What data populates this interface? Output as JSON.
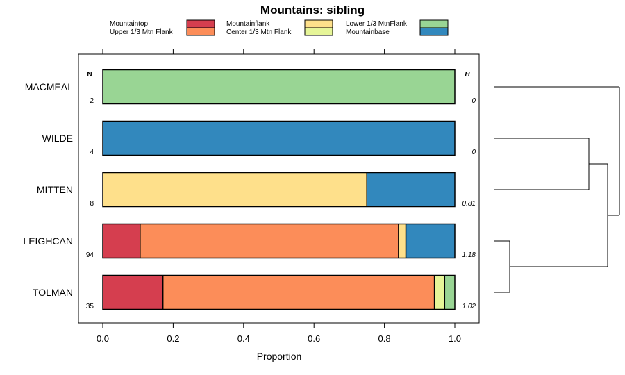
{
  "chart_data": {
    "type": "bar",
    "orientation": "horizontal",
    "stacked": true,
    "title": "Mountains: sibling",
    "xlabel": "Proportion",
    "ylabel": "",
    "xlim": [
      0,
      1
    ],
    "xticks": [
      "0.0",
      "0.2",
      "0.4",
      "0.6",
      "0.8",
      "1.0"
    ],
    "n_header": "N",
    "h_header": "H",
    "legend": [
      {
        "name": "Mountaintop",
        "color": "#d53e4f"
      },
      {
        "name": "Upper 1/3 Mtn Flank",
        "color": "#fc8d59"
      },
      {
        "name": "Mountainflank",
        "color": "#fee08b"
      },
      {
        "name": "Center 1/3 Mtn Flank",
        "color": "#e6f598"
      },
      {
        "name": "Lower 1/3 MtnFlank",
        "color": "#99d594"
      },
      {
        "name": "Mountainbase",
        "color": "#3288bd"
      }
    ],
    "categories": [
      "MACMEAL",
      "WILDE",
      "MITTEN",
      "LEIGHCAN",
      "TOLMAN"
    ],
    "n": [
      "2",
      "4",
      "8",
      "94",
      "35"
    ],
    "h": [
      "0",
      "0",
      "0.81",
      "1.18",
      "1.02"
    ],
    "series": [
      {
        "name": "Mountaintop",
        "values": [
          0,
          0,
          0,
          0.106,
          0.171
        ]
      },
      {
        "name": "Upper 1/3 Mtn Flank",
        "values": [
          0,
          0,
          0,
          0.734,
          0.771
        ]
      },
      {
        "name": "Mountainflank",
        "values": [
          0,
          0,
          0.75,
          0.021,
          0
        ]
      },
      {
        "name": "Center 1/3 Mtn Flank",
        "values": [
          0,
          0,
          0,
          0,
          0.029
        ]
      },
      {
        "name": "Lower 1/3 MtnFlank",
        "values": [
          1,
          0,
          0,
          0,
          0.029
        ]
      },
      {
        "name": "Mountainbase",
        "values": [
          0,
          1,
          0.25,
          0.139,
          0
        ]
      }
    ],
    "dendrogram": {
      "merges": [
        [
          "LEIGHCAN",
          "TOLMAN"
        ],
        [
          "WILDE",
          "MITTEN"
        ],
        [
          "WILDE+MITTEN",
          "LEIGHCAN+TOLMAN"
        ],
        [
          "MACMEAL",
          "rest"
        ]
      ]
    }
  }
}
